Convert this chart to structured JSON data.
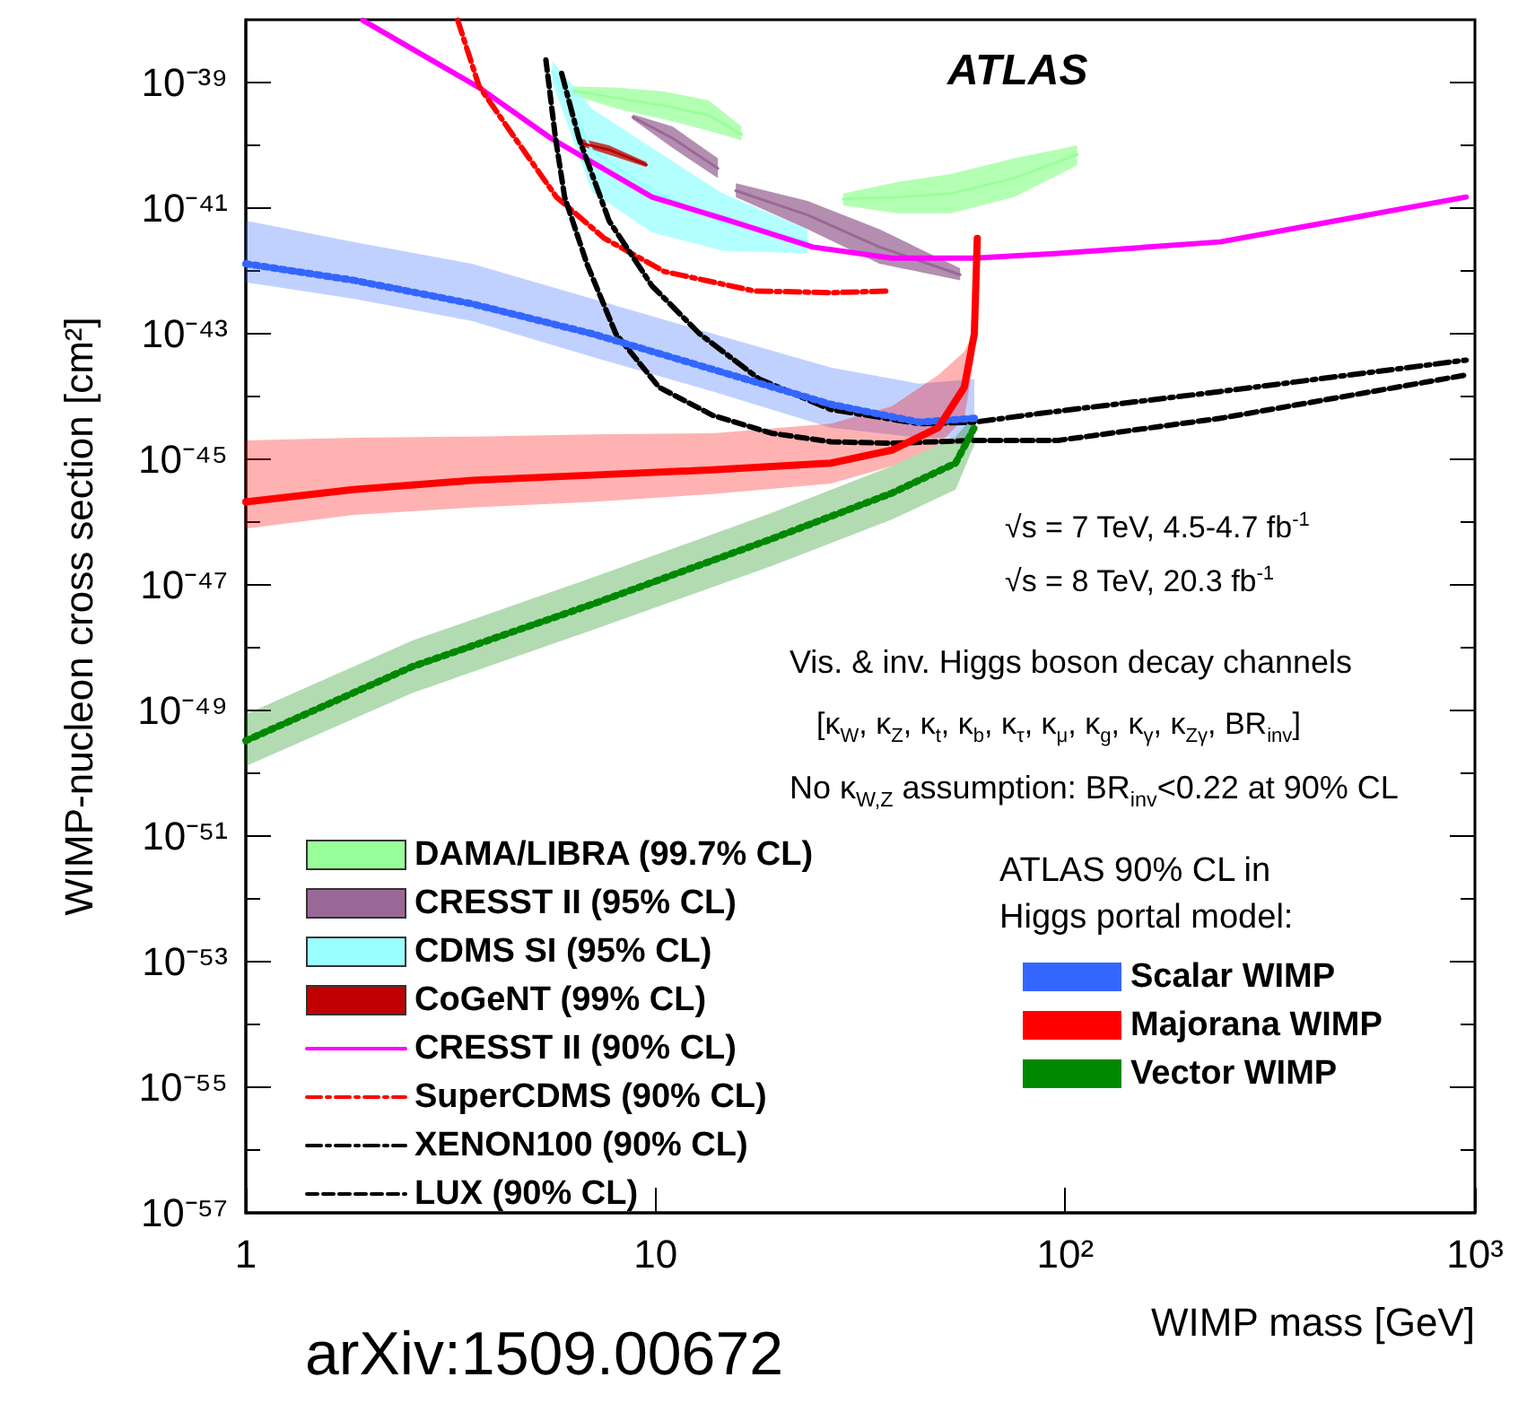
{
  "chart_data": {
    "type": "line",
    "xlabel": "WIMP mass [GeV]",
    "ylabel": "WIMP-nucleon cross section [cm²]",
    "log": "xy",
    "grid": false,
    "legend": "bottom",
    "xlim": [
      1,
      1000
    ],
    "ylim": [
      1e-57,
      1e-38
    ],
    "xticks": [
      1,
      10,
      {
        "value": 100,
        "label": "10²"
      },
      {
        "value": 1000,
        "label": "10³"
      }
    ],
    "yticks": [
      {
        "value": 1e-39,
        "label": "10⁻³⁹"
      },
      {
        "value": 1e-40,
        "label": null
      },
      {
        "value": 1e-41,
        "label": "10⁻⁴¹"
      },
      {
        "value": 1e-42,
        "label": null
      },
      {
        "value": 1e-43,
        "label": "10⁻⁴³"
      },
      {
        "value": 1e-44,
        "label": null
      },
      {
        "value": 1e-45,
        "label": "10⁻⁴⁵"
      },
      {
        "value": 1e-46,
        "label": null
      },
      {
        "value": 1e-47,
        "label": "10⁻⁴⁷"
      },
      {
        "value": 1e-48,
        "label": null
      },
      {
        "value": 1e-49,
        "label": "10⁻⁴⁹"
      },
      {
        "value": 1e-50,
        "label": null
      },
      {
        "value": 1e-51,
        "label": "10⁻⁵¹"
      },
      {
        "value": 1e-52,
        "label": null
      },
      {
        "value": 1e-53,
        "label": "10⁻⁵³"
      },
      {
        "value": 1e-54,
        "label": null
      },
      {
        "value": 1e-55,
        "label": "10⁻⁵⁵"
      },
      {
        "value": 1e-56,
        "label": null
      },
      {
        "value": 1e-57,
        "label": "10⁻⁵⁷"
      }
    ],
    "series": [
      {
        "name": "DAMA/LIBRA (99.7% CL)",
        "color": "#99ff99",
        "x": [
          6.3,
          8.1,
          10.5,
          13.5,
          16.2
        ],
        "values": [
          7.4e-40,
          5.6e-40,
          4.3e-40,
          3e-40,
          1.5e-40
        ],
        "upper": [
          8.7e-40,
          8.3e-40,
          7.2e-40,
          5.2e-40,
          2e-40
        ],
        "lower": [
          6.3e-40,
          3.8e-40,
          2.6e-40,
          1.7e-40,
          1.2e-40
        ]
      },
      {
        "color": "#99ff99",
        "x": [
          28.7,
          38.9,
          52.6,
          75,
          107
        ],
        "values": [
          1.4e-41,
          1.5e-41,
          1.7e-41,
          3e-41,
          7.1e-41
        ],
        "upper": [
          1.7e-41,
          2.6e-41,
          3.5e-41,
          6.2e-41,
          1e-40
        ],
        "lower": [
          1.1e-41,
          8.3e-42,
          8.3e-42,
          1.5e-41,
          4.8e-41
        ]
      },
      {
        "name": "CRESST II (95% CL)",
        "color": "#9a6896",
        "x": [
          8.8,
          11.0,
          14.2
        ],
        "values": [
          2.8e-40,
          1.3e-40,
          4.3e-41
        ],
        "upper": [
          3.1e-40,
          2e-40,
          6.2e-41
        ],
        "lower": [
          2.6e-40,
          9.1e-41,
          3e-41
        ]
      },
      {
        "color": "#9a6896",
        "x": [
          15.7,
          23.5,
          35.2,
          55.4
        ],
        "values": [
          1.9e-41,
          7.8e-42,
          2.4e-42,
          8.7e-43
        ],
        "upper": [
          2.5e-41,
          1.3e-41,
          4.6e-42,
          1.1e-42
        ],
        "lower": [
          1.5e-41,
          4.6e-42,
          1.3e-42,
          7.1e-43
        ]
      },
      {
        "name": "CDMS SI (95% CL)",
        "color": "#99ffff",
        "x": [
          5.6,
          7.0,
          9.8,
          14.6,
          23.5
        ],
        "values": [
          1.5e-39,
          8.3e-41,
          1.9e-41,
          5.9e-42,
          2.9e-42
        ],
        "upper": [
          2.2e-39,
          3.8e-40,
          9.1e-41,
          1.7e-41,
          4.6e-42
        ],
        "lower": [
          1e-39,
          1.8e-41,
          4.1e-42,
          2.1e-42,
          1.9e-42
        ]
      },
      {
        "name": "CoGeNT (99% CL)",
        "color": "#c00000",
        "x": [
          6.5,
          7.7,
          9.5
        ],
        "values": [
          1.1e-40,
          8.5e-41,
          4.9e-41
        ],
        "upper": [
          1.3e-40,
          1e-40,
          5.4e-41
        ],
        "lower": [
          1e-40,
          7.1e-41,
          4.5e-41
        ]
      },
      {
        "name": "CRESST II (90% CL)",
        "color": "#ff00ff",
        "line_style": "solid",
        "x": [
          1.93,
          3.71,
          5.55,
          9.8,
          15.2,
          24.2,
          37.8,
          60,
          96,
          239,
          952
        ],
        "values": [
          9.8e-39,
          8.3e-40,
          1.3e-40,
          1.5e-41,
          6.3e-42,
          2.4e-42,
          1.6e-42,
          1.6e-42,
          1.9e-42,
          2.9e-42,
          1.5e-41
        ]
      },
      {
        "name": "SuperCDMS (90% CL)",
        "color": "#ff0000",
        "line_style": "dashdot",
        "x": [
          3.29,
          3.71,
          4.54,
          5.73,
          7.5,
          10.5,
          17.4,
          26.8,
          37
        ],
        "values": [
          9.8e-39,
          8.7e-40,
          1.3e-40,
          1.5e-41,
          3.3e-42,
          9.8e-43,
          4.8e-43,
          4.5e-43,
          4.8e-43
        ]
      },
      {
        "name": "XENON100 (90% CL)",
        "color": "#000000",
        "line_style": "dashdot",
        "x": [
          5.9,
          6.5,
          7.7,
          9.8,
          12.8,
          17.9,
          26.8,
          44,
          60,
          87,
          239,
          952
        ],
        "values": [
          1.4e-39,
          1.3e-40,
          6.3e-42,
          5.8e-43,
          1e-43,
          1.9e-44,
          6.2e-45,
          3.7e-45,
          3.9e-45,
          5.4e-45,
          1.2e-44,
          3.8e-44
        ]
      },
      {
        "name": "LUX (90% CL)",
        "color": "#000000",
        "line_style": "dashed",
        "x": [
          5.4,
          5.7,
          6.0,
          6.8,
          8.0,
          10.2,
          13.8,
          19.2,
          26.8,
          37.8,
          60,
          96,
          239,
          952
        ],
        "values": [
          2.3e-39,
          1.3e-40,
          1.5e-41,
          1.3e-42,
          1e-43,
          1.4e-44,
          5e-45,
          2.6e-45,
          1.9e-45,
          1.8e-45,
          2e-45,
          2e-45,
          4.5e-45,
          2.2e-44
        ]
      },
      {
        "name": "Scalar WIMP",
        "color": "#3366ff",
        "line_style": "dotted",
        "x": [
          1.0,
          1.83,
          3.56,
          7.0,
          13.8,
          26.8,
          44,
          60
        ],
        "values": [
          1.3e-42,
          7.1e-43,
          3e-43,
          1e-43,
          2.7e-44,
          7.5e-45,
          3.9e-45,
          4.5e-45
        ],
        "upper": [
          6.3e-42,
          2.9e-42,
          1.3e-42,
          3.6e-43,
          1e-43,
          2.9e-44,
          1.6e-44,
          1.9e-44
        ],
        "lower": [
          6.6e-43,
          3.6e-43,
          1.6e-43,
          4.3e-44,
          1.2e-44,
          3.2e-45,
          2.2e-45,
          2.2e-45
        ]
      },
      {
        "name": "Majorana WIMP",
        "color": "#ff0000",
        "line_style": "solid",
        "x": [
          1.0,
          1.83,
          3.56,
          7.0,
          13.8,
          26.8,
          37.8,
          49,
          56.7,
          60,
          61
        ],
        "values": [
          2.1e-46,
          3.3e-46,
          4.6e-46,
          5.6e-46,
          6.8e-46,
          8.7e-46,
          1.4e-45,
          3.2e-45,
          1.4e-44,
          1e-43,
          3.3e-42
        ],
        "upper": [
          2e-45,
          2.2e-45,
          2.3e-45,
          2.5e-45,
          2.6e-45,
          3.7e-45,
          7e-45,
          2.2e-44,
          5.2e-44,
          1.1e-43,
          3.3e-42
        ],
        "lower": [
          7.9e-47,
          1.3e-46,
          1.7e-46,
          2.1e-46,
          2.8e-46,
          4.1e-46,
          7.8e-46,
          1.7e-45,
          4.5e-45,
          4.3e-44,
          2.1e-42
        ]
      },
      {
        "name": "Vector WIMP",
        "color": "#008800",
        "line_style": "dotted",
        "x": [
          1.0,
          2.55,
          7.0,
          19.2,
          37.8,
          54,
          60
        ],
        "values": [
          3.3e-50,
          5e-49,
          4.9e-48,
          5.4e-47,
          2.9e-46,
          8.7e-46,
          3.2e-45
        ],
        "upper": [
          8.7e-50,
          1.3e-48,
          1.3e-47,
          1.4e-46,
          7.8e-46,
          2.3e-45,
          5e-45
        ],
        "lower": [
          1.3e-50,
          1.9e-49,
          1.9e-48,
          2e-47,
          1.1e-46,
          3.3e-46,
          1.7e-45
        ]
      }
    ],
    "annotations": [
      "ATLAS",
      "√s = 7 TeV,  4.5-4.7 fb$^{-1}$",
      "√s = 8 TeV, 20.3 fb$^{-1}$",
      "Vis. & inv. Higgs boson decay channels",
      "[κ$_{W}$, κ$_{Z}$, κ$_{t}$, κ$_{b}$, κ$_{τ}$, κ$_{μ}$, κ$_{g}$, κ$_{γ}$, κ$_{Zγ}$, BR$_{inv}$]",
      "No κ$_{W,Z}$ assumption:  BR$_{inv}$<0.22 at 90% CL",
      "ATLAS 90% CL in",
      "Higgs portal model:",
      "arXiv:1509.00672"
    ]
  }
}
